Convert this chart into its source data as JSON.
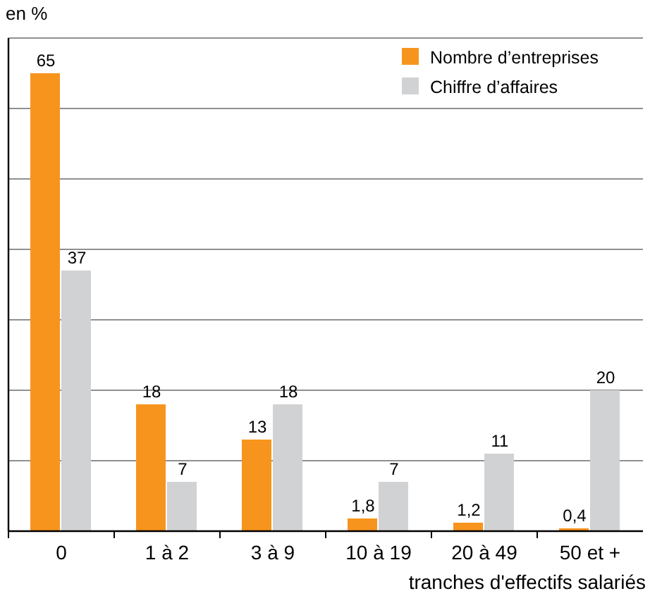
{
  "chart_data": {
    "type": "bar",
    "ylabel": "en %",
    "xlabel": "tranches d'effectifs salariés",
    "categories": [
      "0",
      "1 à 2",
      "3 à 9",
      "10 à 19",
      "20 à 49",
      "50 et +"
    ],
    "series": [
      {
        "name": "Nombre d’entreprises",
        "color": "#f7941d",
        "values": [
          65,
          18,
          13,
          1.8,
          1.2,
          0.4
        ],
        "value_labels": [
          "65",
          "18",
          "13",
          "1,8",
          "1,2",
          "0,4"
        ]
      },
      {
        "name": "Chiffre d’affaires",
        "color": "#d1d2d4",
        "values": [
          37,
          7,
          18,
          7,
          11,
          20
        ],
        "value_labels": [
          "37",
          "7",
          "18",
          "7",
          "11",
          "20"
        ]
      }
    ],
    "ylim": [
      0,
      70
    ],
    "yticks": [
      {
        "value": 0,
        "label": null
      },
      {
        "value": 10,
        "label": null
      },
      {
        "value": 20,
        "label": null
      },
      {
        "value": 30,
        "label": null
      },
      {
        "value": 40,
        "label": null
      },
      {
        "value": 50,
        "label": null
      },
      {
        "value": 60,
        "label": null
      },
      {
        "value": 70,
        "label": null
      }
    ],
    "tick_labels": "x",
    "grid": "y",
    "legend": "top right"
  }
}
